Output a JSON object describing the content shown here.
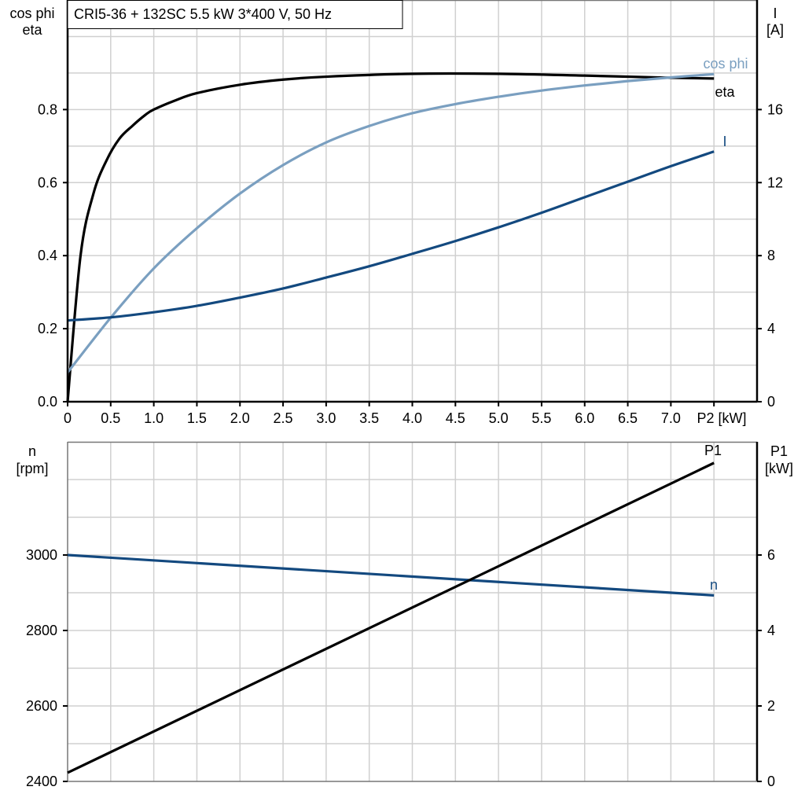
{
  "title": "CRI5-36 + 132SC   5.5 kW   3*400 V, 50 Hz",
  "colors": {
    "eta": "#000000",
    "cos_phi": "#7a9fc0",
    "I": "#13497f",
    "n": "#13497f",
    "P1": "#000000",
    "grid": "#d0d0d0"
  },
  "chart_data": [
    {
      "type": "line",
      "xlabel": "P2 [kW]",
      "xlim": [
        0,
        8
      ],
      "x_ticks": [
        "0",
        "0.5",
        "1.0",
        "1.5",
        "2.0",
        "2.5",
        "3.0",
        "3.5",
        "4.0",
        "4.5",
        "5.0",
        "5.5",
        "6.0",
        "6.5",
        "7.0"
      ],
      "ylabel_left": [
        "cos phi",
        "eta"
      ],
      "ylim_left": [
        0,
        1.1
      ],
      "y_ticks_left": [
        "0.0",
        "0.2",
        "0.4",
        "0.6",
        "0.8"
      ],
      "ylabel_right": [
        "I",
        "[A]"
      ],
      "ylim_right": [
        0,
        22
      ],
      "y_ticks_right": [
        "0",
        "4",
        "8",
        "12",
        "16"
      ],
      "grid": true,
      "series": [
        {
          "name": "eta",
          "axis": "left",
          "x": [
            0,
            0.15,
            0.3,
            0.45,
            0.6,
            0.75,
            0.9,
            1.0,
            1.25,
            1.5,
            2.0,
            2.5,
            3.0,
            4.0,
            5.0,
            6.0,
            7.0,
            7.5
          ],
          "y": [
            0,
            0.4,
            0.57,
            0.66,
            0.72,
            0.755,
            0.785,
            0.8,
            0.825,
            0.845,
            0.868,
            0.882,
            0.89,
            0.898,
            0.898,
            0.893,
            0.887,
            0.885
          ]
        },
        {
          "name": "cos phi",
          "axis": "left",
          "x": [
            0,
            0.5,
            1.0,
            1.5,
            2.0,
            2.5,
            3.0,
            3.5,
            4.0,
            4.5,
            5.0,
            5.5,
            6.0,
            6.5,
            7.0,
            7.5
          ],
          "y": [
            0.08,
            0.23,
            0.365,
            0.475,
            0.57,
            0.648,
            0.71,
            0.755,
            0.79,
            0.815,
            0.835,
            0.852,
            0.866,
            0.878,
            0.888,
            0.897
          ]
        },
        {
          "name": "I",
          "axis": "right",
          "x": [
            0,
            0.5,
            1.0,
            1.5,
            2.0,
            2.5,
            3.0,
            3.5,
            4.0,
            4.5,
            5.0,
            5.5,
            6.0,
            6.5,
            7.0,
            7.5
          ],
          "y": [
            4.45,
            4.62,
            4.9,
            5.25,
            5.7,
            6.2,
            6.8,
            7.42,
            8.1,
            8.8,
            9.55,
            10.35,
            11.2,
            12.05,
            12.9,
            13.7
          ]
        }
      ]
    },
    {
      "type": "line",
      "xlim": [
        0,
        8
      ],
      "ylabel_left": [
        "n",
        "[rpm]"
      ],
      "ylim_left": [
        2400,
        3300
      ],
      "y_ticks_left": [
        "2400",
        "2600",
        "2800",
        "3000"
      ],
      "ylabel_right": [
        "P1",
        "[kW]"
      ],
      "ylim_right": [
        0,
        9
      ],
      "y_ticks_right": [
        "0",
        "2",
        "4",
        "6"
      ],
      "grid": true,
      "series": [
        {
          "name": "n",
          "axis": "left",
          "x": [
            0,
            7.5
          ],
          "y": [
            3000,
            2893
          ]
        },
        {
          "name": "P1",
          "axis": "right",
          "x": [
            0,
            7.5
          ],
          "y": [
            0.23,
            8.44
          ]
        }
      ]
    }
  ]
}
